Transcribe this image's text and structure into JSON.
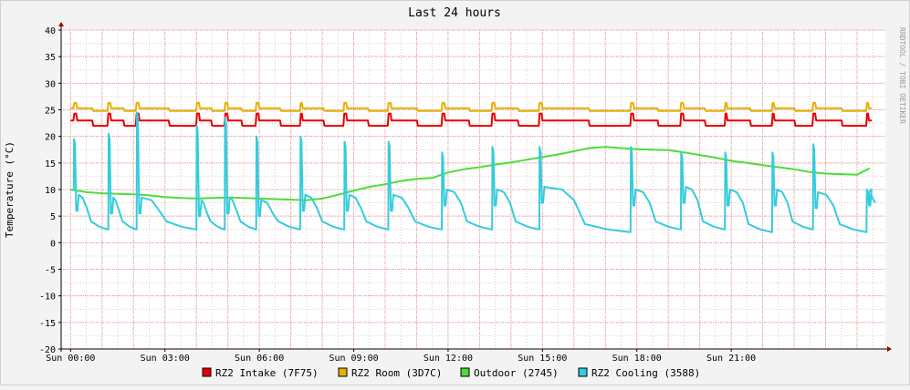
{
  "chart_data": {
    "type": "line",
    "title": "Last 24 hours",
    "ylabel": "Temperature (°C)",
    "watermark": "RRDTOOL / TOBI OETIKER",
    "x_unit": "hours",
    "xlim": [
      -0.3,
      25.9
    ],
    "ylim": [
      -20,
      40
    ],
    "y_ticks": [
      -20,
      -15,
      -10,
      -5,
      0,
      5,
      10,
      15,
      20,
      25,
      30,
      35,
      40
    ],
    "x_ticks": [
      {
        "x": 0,
        "label": "Sun 00:00"
      },
      {
        "x": 3,
        "label": "Sun 03:00"
      },
      {
        "x": 6,
        "label": "Sun 06:00"
      },
      {
        "x": 9,
        "label": "Sun 09:00"
      },
      {
        "x": 12,
        "label": "Sun 12:00"
      },
      {
        "x": 15,
        "label": "Sun 15:00"
      },
      {
        "x": 18,
        "label": "Sun 18:00"
      },
      {
        "x": 21,
        "label": "Sun 21:00"
      }
    ],
    "grid": true,
    "legend_position": "bottom",
    "series": [
      {
        "name": "RZ2 Intake (7F75)",
        "color": "#e60000",
        "cycles": [
          0.1,
          1.2,
          2.1,
          4.0,
          4.9,
          5.9,
          7.3,
          8.7,
          10.1,
          11.8,
          13.4,
          14.9,
          17.8,
          19.4,
          20.8,
          22.3,
          23.6,
          25.3
        ],
        "base": 23.0,
        "peak": 24.3,
        "low": 22.0
      },
      {
        "name": "RZ2 Room (3D7C)",
        "color": "#e6b000",
        "cycles": [
          0.1,
          1.2,
          2.1,
          4.0,
          4.9,
          5.9,
          7.3,
          8.7,
          10.1,
          11.8,
          13.4,
          14.9,
          17.8,
          19.4,
          20.8,
          22.3,
          23.6,
          25.3
        ],
        "base": 25.3,
        "peak": 26.3,
        "low": 24.8
      },
      {
        "name": "Outdoor (2745)",
        "color": "#4ddc3c",
        "x": [
          0.0,
          0.5,
          1.0,
          1.5,
          2.0,
          2.5,
          3.0,
          3.5,
          4.0,
          4.5,
          5.0,
          5.5,
          6.0,
          6.5,
          7.0,
          7.5,
          8.0,
          8.5,
          9.0,
          9.5,
          10.0,
          10.5,
          11.0,
          11.5,
          12.0,
          12.5,
          13.0,
          13.5,
          14.0,
          14.5,
          15.0,
          15.5,
          16.0,
          16.5,
          17.0,
          17.5,
          18.0,
          18.5,
          19.0,
          19.5,
          20.0,
          20.5,
          21.0,
          21.5,
          22.0,
          22.5,
          23.0,
          23.5,
          24.0,
          24.5,
          25.0,
          25.4
        ],
        "values": [
          10.0,
          9.5,
          9.3,
          9.2,
          9.1,
          8.9,
          8.6,
          8.4,
          8.3,
          8.4,
          8.5,
          8.4,
          8.3,
          8.2,
          8.1,
          8.0,
          8.3,
          9.0,
          9.8,
          10.5,
          11.0,
          11.6,
          12.0,
          12.2,
          13.2,
          13.8,
          14.2,
          14.7,
          15.1,
          15.6,
          16.1,
          16.6,
          17.2,
          17.8,
          18.0,
          17.8,
          17.6,
          17.5,
          17.4,
          17.0,
          16.5,
          16.0,
          15.4,
          15.0,
          14.6,
          14.2,
          13.8,
          13.3,
          13.0,
          12.9,
          12.8,
          14.0
        ]
      },
      {
        "name": "RZ2 Cooling (3588)",
        "color": "#33ccdd",
        "cycles": [
          0.1,
          1.2,
          2.1,
          4.0,
          4.9,
          5.9,
          7.3,
          8.7,
          10.1,
          11.8,
          13.4,
          14.9,
          17.8,
          19.4,
          20.8,
          22.3,
          23.6,
          25.3
        ],
        "peaks": [
          19.5,
          20.5,
          24.5,
          22.0,
          23.5,
          20.0,
          20.0,
          19.0,
          19.0,
          17.0,
          18.0,
          18.0,
          18.0,
          17.0,
          17.0,
          17.0,
          18.5,
          10.0
        ],
        "plateaus": [
          9.0,
          8.5,
          8.5,
          8.0,
          8.5,
          8.0,
          9.0,
          9.0,
          9.0,
          10.0,
          10.0,
          10.5,
          10.0,
          10.5,
          10.0,
          10.0,
          9.5,
          10.0
        ],
        "floors": [
          2.5,
          2.5,
          2.5,
          2.5,
          2.5,
          2.5,
          2.5,
          2.5,
          2.5,
          2.5,
          2.5,
          2.0,
          2.5,
          2.5,
          2.0,
          2.5,
          2.0,
          7.5
        ]
      }
    ]
  }
}
